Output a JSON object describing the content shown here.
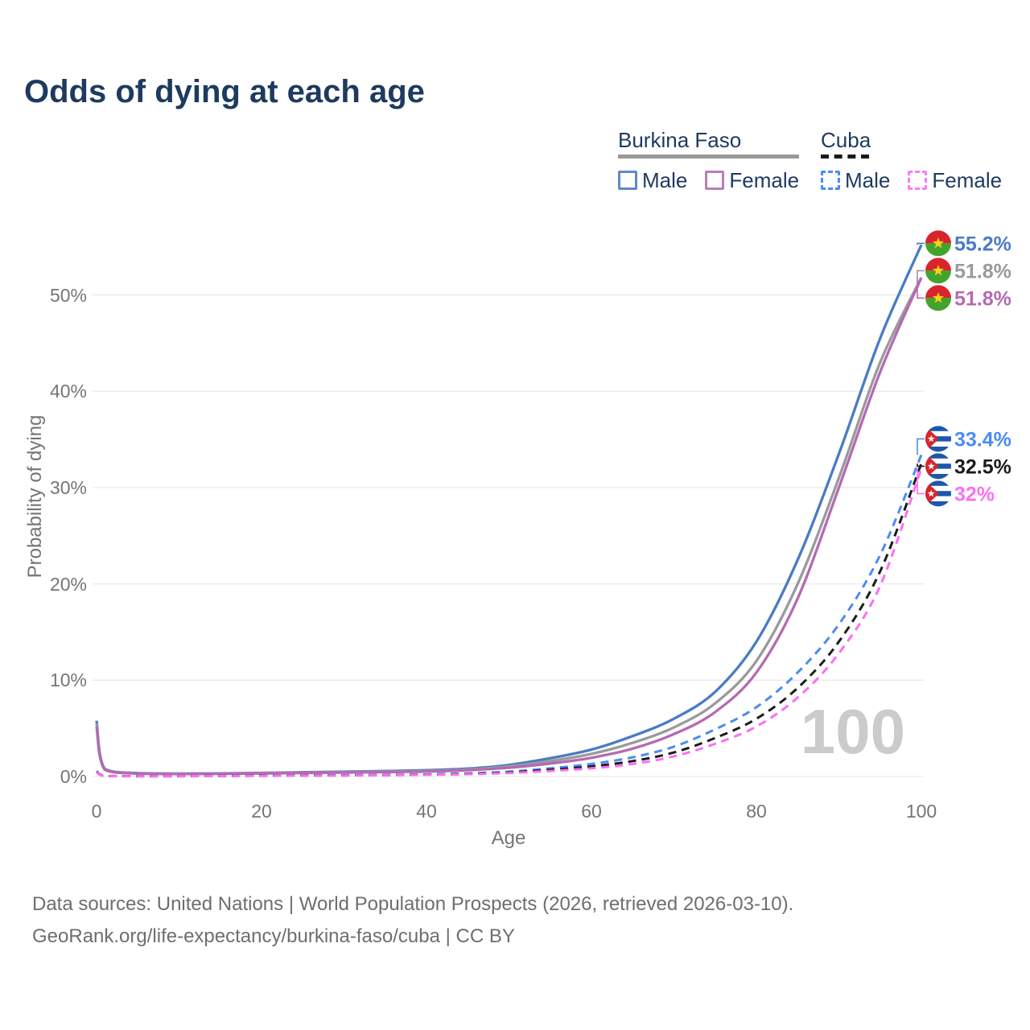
{
  "title": "Odds of dying at each age",
  "legend": {
    "groups": [
      {
        "id": "burkina-faso",
        "label": "Burkina Faso",
        "swatch_style": "solid",
        "swatch_color": "#9a9a9a",
        "items": [
          {
            "label": "Male",
            "color": "#5f88c8",
            "style": "solid"
          },
          {
            "label": "Female",
            "color": "#b77fb7",
            "style": "solid"
          }
        ]
      },
      {
        "id": "cuba",
        "label": "Cuba",
        "swatch_style": "dashed",
        "swatch_color": "#1b1b1b",
        "items": [
          {
            "label": "Male",
            "color": "#4b8bf5",
            "style": "dashed"
          },
          {
            "label": "Female",
            "color": "#fc7cf2",
            "style": "dashed"
          }
        ]
      }
    ]
  },
  "watermark": "100",
  "footer": {
    "line1": "Data sources: United Nations | World Population Prospects (2026, retrieved 2026-03-10).",
    "line2": "GeoRank.org/life-expectancy/burkina-faso/cuba | CC BY"
  },
  "chart_data": {
    "type": "line",
    "title": "Odds of dying at each age",
    "xlabel": "Age",
    "ylabel": "Probability of dying",
    "xlim": [
      0,
      100
    ],
    "ylim": [
      0,
      57
    ],
    "grid": "horizontal",
    "gridline_color": "#e9e9e9",
    "x_ticks": [
      {
        "label": "0",
        "value": 0
      },
      {
        "label": "20",
        "value": 20
      },
      {
        "label": "40",
        "value": 40
      },
      {
        "label": "60",
        "value": 60
      },
      {
        "label": "80",
        "value": 80
      },
      {
        "label": "100",
        "value": 100
      }
    ],
    "y_ticks": [
      {
        "label": "0%",
        "value": 0
      },
      {
        "label": "10%",
        "value": 10
      },
      {
        "label": "20%",
        "value": 20
      },
      {
        "label": "30%",
        "value": 30
      },
      {
        "label": "40%",
        "value": 40
      },
      {
        "label": "50%",
        "value": 50
      }
    ],
    "ages": [
      0,
      1,
      5,
      10,
      15,
      20,
      25,
      30,
      35,
      40,
      45,
      50,
      55,
      60,
      65,
      70,
      75,
      80,
      85,
      90,
      95,
      100
    ],
    "series": [
      {
        "id": "burkina-faso-male",
        "name": "Burkina Faso Male",
        "group": "burkina-faso",
        "color": "#4a7bc4",
        "dashed": false,
        "flag": "burkina-faso",
        "end_label": "55.2%",
        "values": [
          5.8,
          0.8,
          0.35,
          0.3,
          0.32,
          0.38,
          0.44,
          0.5,
          0.57,
          0.65,
          0.82,
          1.2,
          1.9,
          2.8,
          4.2,
          6.0,
          8.8,
          14.0,
          22.5,
          33.5,
          45.5,
          55.2
        ]
      },
      {
        "id": "burkina-faso-both",
        "name": "Burkina Faso Both sexes",
        "group": "burkina-faso",
        "color": "#9a9a9a",
        "dashed": false,
        "flag": "burkina-faso",
        "end_label": "51.8%",
        "values": [
          5.5,
          0.75,
          0.32,
          0.28,
          0.3,
          0.35,
          0.4,
          0.45,
          0.5,
          0.58,
          0.72,
          1.05,
          1.6,
          2.35,
          3.5,
          5.1,
          7.6,
          12.0,
          20.0,
          31.0,
          43.0,
          51.8
        ]
      },
      {
        "id": "burkina-faso-female",
        "name": "Burkina Faso Female",
        "group": "burkina-faso",
        "color": "#b46ab2",
        "dashed": false,
        "flag": "burkina-faso",
        "end_label": "51.8%",
        "values": [
          5.2,
          0.7,
          0.3,
          0.26,
          0.28,
          0.32,
          0.37,
          0.41,
          0.46,
          0.52,
          0.65,
          0.92,
          1.35,
          1.95,
          2.9,
          4.4,
          6.7,
          10.8,
          18.5,
          30.0,
          42.0,
          51.8
        ]
      },
      {
        "id": "cuba-male",
        "name": "Cuba Male",
        "group": "cuba",
        "color": "#4b8bf5",
        "dashed": true,
        "flag": "cuba",
        "end_label": "33.4%",
        "values": [
          0.55,
          0.07,
          0.04,
          0.04,
          0.07,
          0.1,
          0.12,
          0.14,
          0.17,
          0.22,
          0.32,
          0.5,
          0.85,
          1.3,
          2.0,
          3.1,
          4.9,
          7.2,
          10.8,
          15.8,
          23.0,
          33.4
        ]
      },
      {
        "id": "cuba-both",
        "name": "Cuba Both sexes",
        "group": "cuba",
        "color": "#1b1b1b",
        "dashed": true,
        "flag": "cuba",
        "end_label": "32.5%",
        "values": [
          0.5,
          0.06,
          0.035,
          0.035,
          0.06,
          0.08,
          0.1,
          0.12,
          0.15,
          0.2,
          0.28,
          0.42,
          0.7,
          1.05,
          1.6,
          2.5,
          4.0,
          6.0,
          9.2,
          14.0,
          21.3,
          32.5
        ]
      },
      {
        "id": "cuba-female",
        "name": "Cuba Female",
        "group": "cuba",
        "color": "#fb70f0",
        "dashed": true,
        "flag": "cuba",
        "end_label": "32%",
        "values": [
          0.45,
          0.05,
          0.03,
          0.03,
          0.05,
          0.07,
          0.09,
          0.11,
          0.13,
          0.18,
          0.24,
          0.36,
          0.58,
          0.85,
          1.3,
          2.1,
          3.4,
          5.2,
          8.2,
          12.8,
          19.8,
          32.0
        ]
      }
    ],
    "flag_colors": {
      "burkina_faso_red": "#d8242c",
      "burkina_faso_green": "#43a42d",
      "burkina_faso_star": "#fcd116",
      "cuba_blue": "#1d57ad",
      "cuba_red": "#d8242c",
      "cuba_white": "#ffffff"
    }
  }
}
